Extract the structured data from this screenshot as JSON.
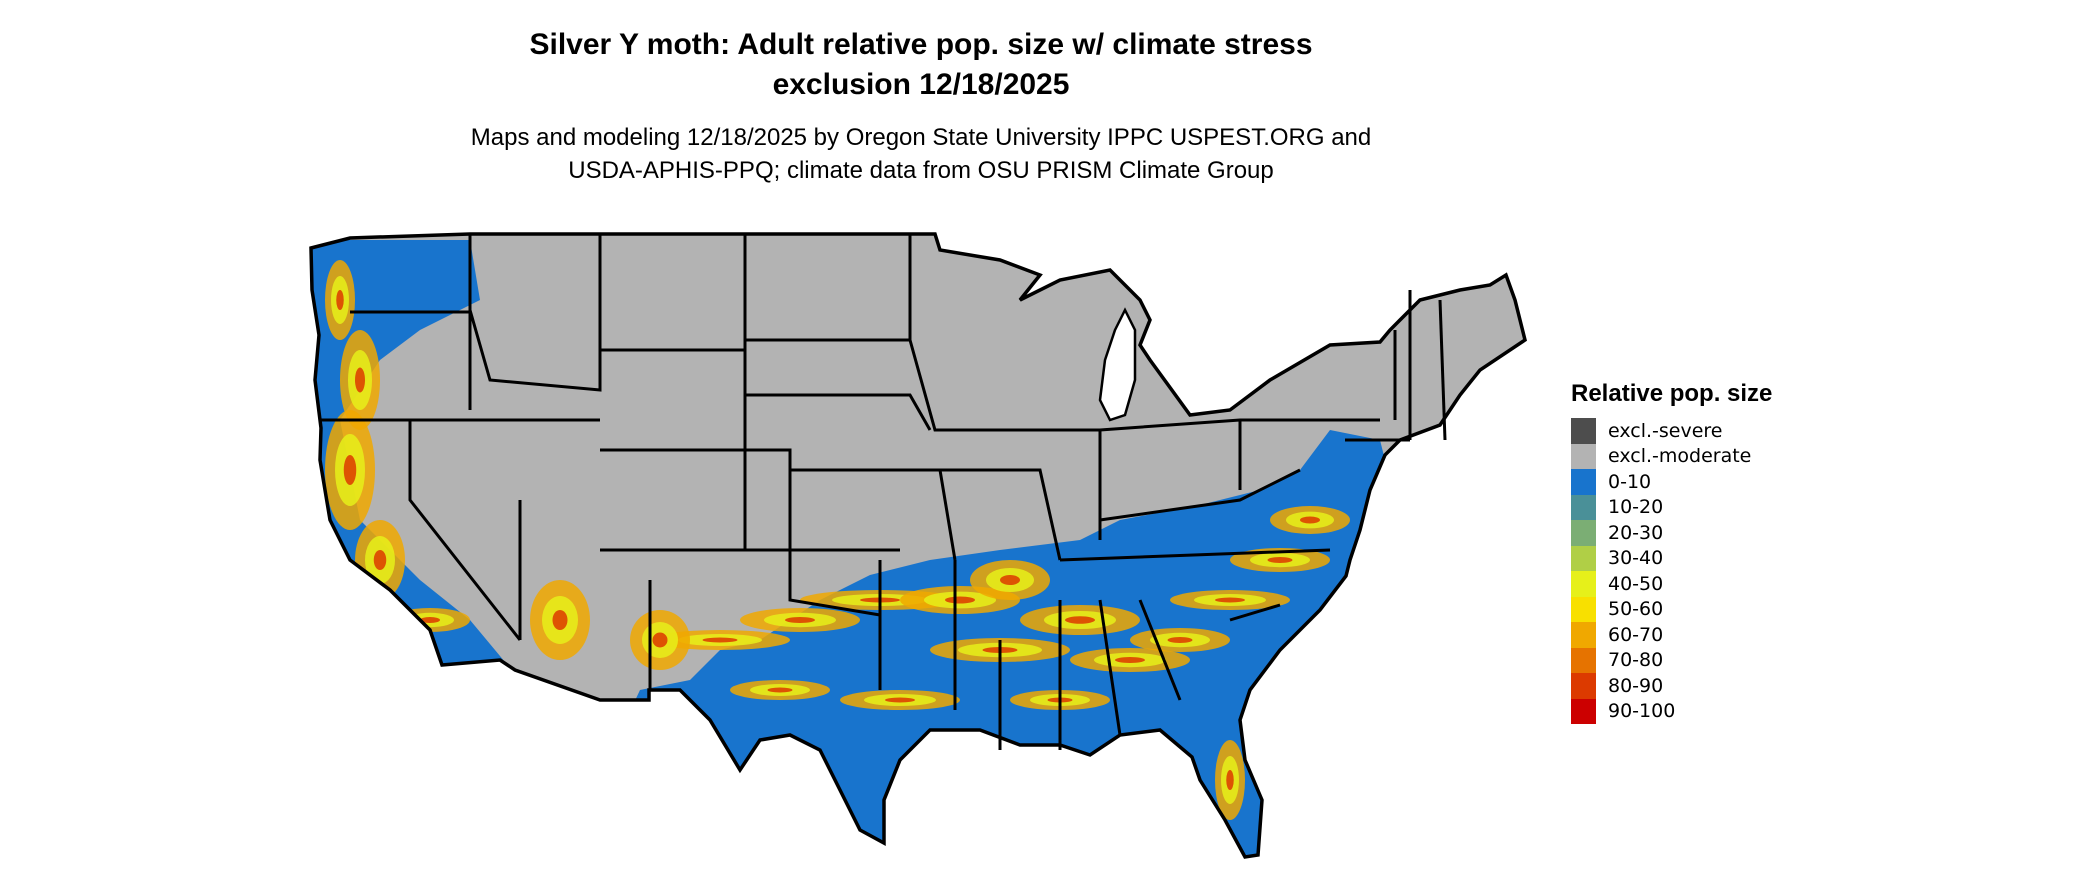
{
  "title_line1": "Silver Y moth: Adult relative pop. size w/ climate stress",
  "title_line2": "exclusion 12/18/2025",
  "subtitle_line1": "Maps and modeling 12/18/2025 by Oregon State University IPPC USPEST.ORG and",
  "subtitle_line2": "USDA-APHIS-PPQ; climate data from OSU PRISM Climate Group",
  "legend": {
    "title": "Relative pop. size",
    "items": [
      {
        "label": "excl.-severe",
        "color": "#4d4d4d"
      },
      {
        "label": "excl.-moderate",
        "color": "#b3b3b3"
      },
      {
        "label": "0-10",
        "color": "#1874cd"
      },
      {
        "label": "10-20",
        "color": "#4a9098"
      },
      {
        "label": "20-30",
        "color": "#7bae74"
      },
      {
        "label": "30-40",
        "color": "#b0cf46"
      },
      {
        "label": "40-50",
        "color": "#e6f01a"
      },
      {
        "label": "50-60",
        "color": "#f8e000"
      },
      {
        "label": "60-70",
        "color": "#f0a800"
      },
      {
        "label": "70-80",
        "color": "#e67300"
      },
      {
        "label": "80-90",
        "color": "#dc3a00"
      },
      {
        "label": "90-100",
        "color": "#cc0000"
      }
    ]
  },
  "map": {
    "region": "Contiguous United States",
    "pattern": "southern and Pacific coastal states suitable (0-100); northern interior excluded (moderate)"
  }
}
